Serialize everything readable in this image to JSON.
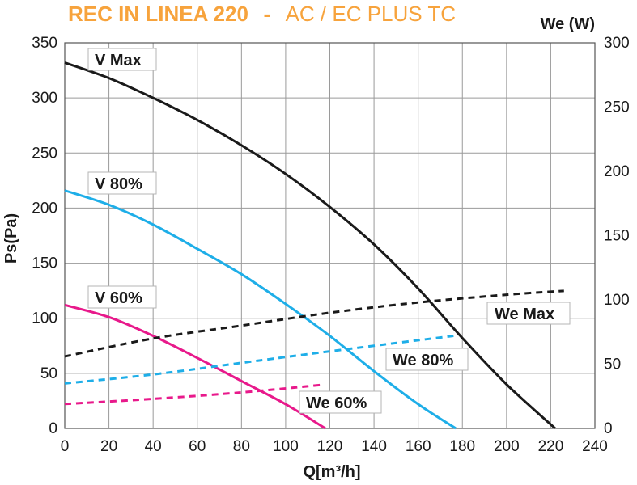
{
  "header": {
    "title_main": "REC IN LINEA 220",
    "title_sep": "-",
    "title_sub": "AC  /  EC PLUS TC",
    "color": "#f7a33c"
  },
  "chart_data": {
    "type": "line",
    "xlabel": "Q[m³/h]",
    "ylabel": "Ps(Pa)",
    "y2label": "We (W)",
    "xlim": [
      0,
      240
    ],
    "ylim": [
      0,
      350
    ],
    "y2lim": [
      0,
      300
    ],
    "x_ticks": [
      0,
      20,
      40,
      60,
      80,
      100,
      120,
      140,
      160,
      180,
      200,
      220,
      240
    ],
    "y_ticks": [
      0,
      50,
      100,
      150,
      200,
      250,
      300,
      350
    ],
    "y2_ticks": [
      0,
      50,
      100,
      150,
      200,
      250,
      300
    ],
    "grid": true,
    "series": [
      {
        "name": "V Max",
        "axis": "left",
        "style": "solid",
        "color": "#1a1a1a",
        "x": [
          0,
          20,
          40,
          60,
          80,
          100,
          120,
          140,
          160,
          180,
          200,
          222
        ],
        "y": [
          332,
          318,
          300,
          280,
          257,
          231,
          201,
          167,
          127,
          82,
          40,
          0
        ]
      },
      {
        "name": "V 80%",
        "axis": "left",
        "style": "solid",
        "color": "#1eaee8",
        "x": [
          0,
          20,
          40,
          60,
          80,
          100,
          120,
          140,
          160,
          177
        ],
        "y": [
          216,
          203,
          185,
          163,
          140,
          113,
          84,
          52,
          22,
          0
        ]
      },
      {
        "name": "V 60%",
        "axis": "left",
        "style": "solid",
        "color": "#e8198b",
        "x": [
          0,
          20,
          40,
          60,
          80,
          100,
          118
        ],
        "y": [
          112,
          101,
          84,
          64,
          43,
          22,
          0
        ]
      },
      {
        "name": "We Max",
        "axis": "right",
        "style": "dashed",
        "color": "#1a1a1a",
        "x": [
          0,
          40,
          80,
          120,
          160,
          200,
          226
        ],
        "y": [
          56,
          70,
          80,
          90,
          98,
          104,
          107
        ]
      },
      {
        "name": "We 80%",
        "axis": "right",
        "style": "dashed",
        "color": "#1eaee8",
        "x": [
          0,
          40,
          80,
          120,
          176
        ],
        "y": [
          35,
          42,
          51,
          60,
          72
        ]
      },
      {
        "name": "We 60%",
        "axis": "right",
        "style": "dashed",
        "color": "#e8198b",
        "x": [
          0,
          40,
          80,
          117
        ],
        "y": [
          19,
          23,
          28,
          34
        ]
      }
    ]
  }
}
